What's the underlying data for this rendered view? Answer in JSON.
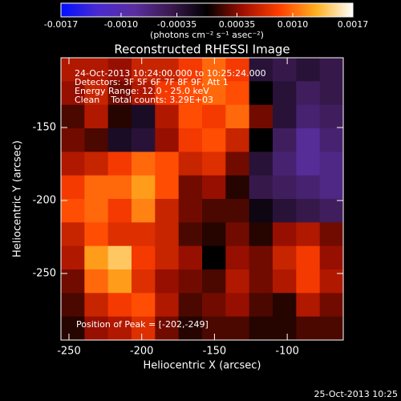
{
  "chart_data": {
    "type": "heatmap",
    "title": "Reconstructed RHESSI Image",
    "xlabel": "Heliocentric X (arcsec)",
    "ylabel": "Heliocentric Y (arcsec)",
    "xlim": [
      -255.5,
      -61.5
    ],
    "ylim": [
      -295.6,
      -102.2
    ],
    "xticks": [
      -250,
      -200,
      -150,
      -100
    ],
    "yticks": [
      -250,
      -200,
      -150
    ],
    "annotations": [
      "24-Oct-2013 10:24:00.000 to 10:25:24.000",
      "Detectors: 3F 5F 6F 7F 8F 9F, Att 1",
      "Energy Range: 12.0 - 25.0 keV",
      "Clean    Total counts: 3.29E+03"
    ],
    "peak_label": "Position of Peak = [-202,-249]",
    "colorbar": {
      "label": "(photons cm⁻² s⁻¹ asec⁻²)",
      "lim": [
        -0.0017,
        0.0017
      ],
      "ticks": [
        -0.0017,
        {
          "value": -0.001,
          "label": "-0.0010"
        },
        -0.00035,
        0.00035,
        {
          "value": 0.001,
          "label": "0.0010"
        },
        0.0017
      ],
      "colors": [
        "#0010ff",
        "#4a2ad0",
        "#5a2ea0",
        "#3a1a50",
        "#000000",
        "#a01000",
        "#ff4000",
        "#ffb020",
        "#ffffff"
      ]
    },
    "z": [
      [
        0.0005,
        0.0005,
        0.0004,
        0.0006,
        0.0006,
        0.0008,
        0.001,
        0.0008,
        -0.0003,
        -0.0004,
        -0.0003,
        -0.0004
      ],
      [
        0.0004,
        0.0006,
        0.0003,
        0.0005,
        0.0008,
        0.0009,
        0.001,
        0.0009,
        0,
        -0.0003,
        -0.0005,
        -0.0004
      ],
      [
        0.0002,
        0.0005,
        0.0001,
        -0.0002,
        0.0005,
        0.0009,
        0.0008,
        0.001,
        0.0003,
        -0.0003,
        -0.0006,
        -0.0005
      ],
      [
        0.0003,
        0.0002,
        -0.0002,
        -0.0003,
        0.0004,
        0.0008,
        0.0009,
        0.0006,
        0,
        -0.0005,
        -0.0008,
        -0.0006
      ],
      [
        0.0005,
        0.0006,
        0.0008,
        0.001,
        0.0009,
        0.0006,
        0.0007,
        0.0003,
        -0.0003,
        -0.0006,
        -0.0008,
        -0.0007
      ],
      [
        0.0008,
        0.001,
        0.001,
        0.0012,
        0.0009,
        0.0003,
        0.0004,
        0.0001,
        -0.0004,
        -0.0005,
        -0.0006,
        -0.0007
      ],
      [
        0.0009,
        0.001,
        0.0008,
        0.0011,
        0.0006,
        0.0003,
        0.0002,
        0.0002,
        -0.0001,
        -0.0003,
        -0.0004,
        -0.0005
      ],
      [
        0.0006,
        0.0009,
        0.0007,
        0.0007,
        0.0006,
        0.0002,
        0.0001,
        0.0003,
        0.0001,
        0.0004,
        0.0005,
        0.0003
      ],
      [
        0.0005,
        0.0012,
        0.0014,
        0.0008,
        0.0006,
        0.0004,
        0,
        0.0004,
        0.0003,
        0.0006,
        0.0008,
        0.0004
      ],
      [
        0.0003,
        0.001,
        0.0012,
        0.0007,
        0.0004,
        0.0003,
        0.0002,
        0.0005,
        0.0003,
        0.0005,
        0.0008,
        0.0005
      ],
      [
        0.0002,
        0.0006,
        0.0008,
        0.0009,
        0.0005,
        0.0002,
        0.0003,
        0.0004,
        0.0002,
        0.0001,
        0.0005,
        0.0003
      ],
      [
        0.0001,
        0.0004,
        0.0005,
        0.0007,
        0.0003,
        0.0001,
        0.0002,
        0.0002,
        0.0001,
        0.0001,
        0.0002,
        0.0002
      ]
    ],
    "footer": "25-Oct-2013 10:25"
  }
}
